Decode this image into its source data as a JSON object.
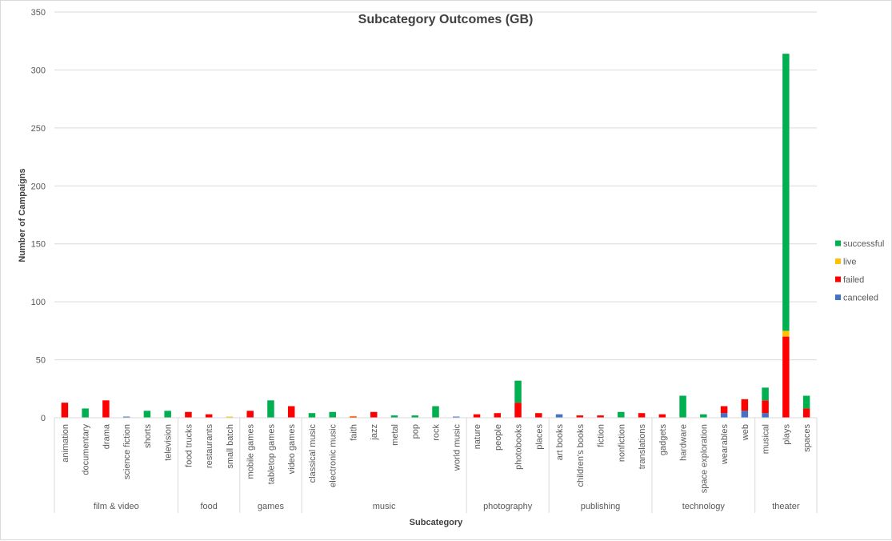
{
  "chart_data": {
    "type": "bar",
    "stacked": true,
    "title": "Subcategory Outcomes (GB)",
    "xlabel": "Subcategory",
    "ylabel": "Number of Campaigns",
    "ylim": [
      0,
      350
    ],
    "yticks": [
      0,
      50,
      100,
      150,
      200,
      250,
      300,
      350
    ],
    "grid": true,
    "legend_position": "right",
    "groups": [
      {
        "name": "film & video",
        "subcategories": [
          "animation",
          "documentary",
          "drama",
          "science fiction",
          "shorts",
          "television"
        ]
      },
      {
        "name": "food",
        "subcategories": [
          "food trucks",
          "restaurants",
          "small batch"
        ]
      },
      {
        "name": "games",
        "subcategories": [
          "mobile games",
          "tabletop games",
          "video games"
        ]
      },
      {
        "name": "music",
        "subcategories": [
          "classical music",
          "electronic music",
          "faith",
          "jazz",
          "metal",
          "pop",
          "rock",
          "world music"
        ]
      },
      {
        "name": "photography",
        "subcategories": [
          "nature",
          "people",
          "photobooks",
          "places"
        ]
      },
      {
        "name": "publishing",
        "subcategories": [
          "art books",
          "children's books",
          "fiction",
          "nonfiction",
          "translations"
        ]
      },
      {
        "name": "technology",
        "subcategories": [
          "gadgets",
          "hardware",
          "space exploration",
          "wearables",
          "web"
        ]
      },
      {
        "name": "theater",
        "subcategories": [
          "musical",
          "plays",
          "spaces"
        ]
      }
    ],
    "categories": [
      "animation",
      "documentary",
      "drama",
      "science fiction",
      "shorts",
      "television",
      "food trucks",
      "restaurants",
      "small batch",
      "mobile games",
      "tabletop games",
      "video games",
      "classical music",
      "electronic music",
      "faith",
      "jazz",
      "metal",
      "pop",
      "rock",
      "world music",
      "nature",
      "people",
      "photobooks",
      "places",
      "art books",
      "children's books",
      "fiction",
      "nonfiction",
      "translations",
      "gadgets",
      "hardware",
      "space exploration",
      "wearables",
      "web",
      "musical",
      "plays",
      "spaces"
    ],
    "series": [
      {
        "name": "canceled",
        "color": "#4472C4",
        "values": [
          0,
          0,
          0,
          1,
          0,
          0,
          0,
          0,
          0,
          0,
          0,
          0,
          0,
          0,
          0,
          0,
          0,
          0,
          0,
          1,
          0,
          0,
          0,
          0,
          3,
          0,
          0,
          0,
          0,
          0,
          0,
          0,
          4,
          6,
          4,
          0,
          0
        ]
      },
      {
        "name": "failed",
        "color": "#FF0000",
        "values": [
          13,
          0,
          15,
          0,
          0,
          0,
          5,
          3,
          0,
          6,
          0,
          10,
          0,
          0,
          1,
          5,
          0,
          0,
          0,
          0,
          3,
          4,
          13,
          4,
          0,
          2,
          2,
          0,
          4,
          3,
          0,
          0,
          6,
          10,
          11,
          70,
          8
        ]
      },
      {
        "name": "live",
        "color": "#FFC000",
        "values": [
          0,
          0,
          0,
          0,
          0,
          0,
          0,
          0,
          1,
          0,
          0,
          0,
          0,
          0,
          0.5,
          0,
          0,
          0,
          0,
          0,
          0,
          0,
          0,
          0,
          0,
          0,
          0,
          0,
          0,
          0,
          0,
          0,
          0,
          0,
          0,
          5,
          0
        ]
      },
      {
        "name": "successful",
        "color": "#00B050",
        "values": [
          0,
          8,
          0,
          0,
          6,
          6,
          0,
          0,
          0,
          0,
          15,
          0,
          4,
          5,
          0,
          0,
          2,
          2,
          10,
          0,
          0,
          0,
          19,
          0,
          0,
          0,
          0,
          5,
          0,
          0,
          19,
          3,
          0,
          0,
          11,
          239,
          11
        ]
      }
    ]
  }
}
